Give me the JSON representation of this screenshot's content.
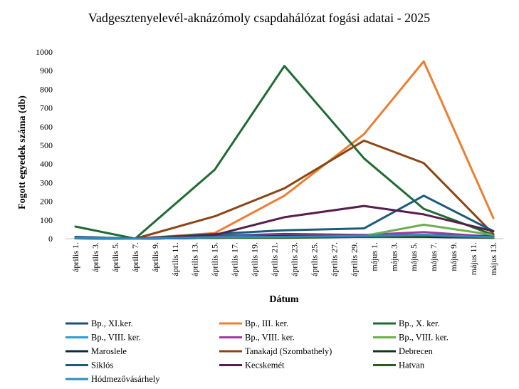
{
  "chart_data": {
    "type": "line",
    "title": "Vadgesztenyelevél-aknázómoly csapdahálózat fogási adatai - 2025",
    "xlabel": "Dátum",
    "ylabel": "Fogott egyedek száma (db)",
    "ylim": [
      0,
      1000
    ],
    "yticks": [
      "0",
      "100",
      "200",
      "300",
      "400",
      "500",
      "600",
      "700",
      "800",
      "900",
      "1000"
    ],
    "grid": false,
    "legend_position": "bottom",
    "categories": [
      "április 1.",
      "április 3.",
      "április 5.",
      "április 7.",
      "április 9.",
      "április 11.",
      "április 13.",
      "április 15.",
      "április 17.",
      "április 19.",
      "április 21.",
      "április 23.",
      "április 25.",
      "április 27.",
      "április 29.",
      "május 1.",
      "május 3.",
      "május 5.",
      "május 7.",
      "május 9.",
      "május 11.",
      "május 13."
    ],
    "series": [
      {
        "name": "Bp., XI.ker.",
        "color": "#1f4e79",
        "points": [
          [
            0,
            10
          ],
          [
            3,
            0
          ],
          [
            7,
            15
          ],
          [
            10.5,
            25
          ],
          [
            14.5,
            20
          ],
          [
            17.5,
            20
          ],
          [
            21,
            15
          ]
        ]
      },
      {
        "name": " Bp., III. ker.",
        "color": "#ed7d31",
        "points": [
          [
            0,
            5
          ],
          [
            3,
            0
          ],
          [
            7,
            30
          ],
          [
            10.5,
            230
          ],
          [
            14.5,
            560
          ],
          [
            17.5,
            950
          ],
          [
            21,
            110
          ]
        ]
      },
      {
        "name": "Bp., X. ker.",
        "color": "#1e6b30",
        "points": [
          [
            0,
            65
          ],
          [
            3,
            0
          ],
          [
            7,
            370
          ],
          [
            10.5,
            925
          ],
          [
            14.5,
            430
          ],
          [
            17.5,
            160
          ],
          [
            21,
            20
          ]
        ]
      },
      {
        "name": "Bp., VIII. ker.",
        "color": "#2e9bd6",
        "points": [
          [
            0,
            5
          ],
          [
            3,
            0
          ],
          [
            7,
            5
          ],
          [
            10.5,
            10
          ],
          [
            14.5,
            10
          ],
          [
            17.5,
            15
          ],
          [
            21,
            10
          ]
        ]
      },
      {
        "name": "Bp., VIII. ker.",
        "color": "#a5399a",
        "points": [
          [
            0,
            3
          ],
          [
            3,
            0
          ],
          [
            7,
            10
          ],
          [
            10.5,
            20
          ],
          [
            14.5,
            20
          ],
          [
            17.5,
            35
          ],
          [
            21,
            10
          ]
        ]
      },
      {
        "name": "Bp., VIII. ker.",
        "color": "#6ab04c",
        "points": [
          [
            0,
            2
          ],
          [
            3,
            0
          ],
          [
            7,
            5
          ],
          [
            10.5,
            10
          ],
          [
            14.5,
            15
          ],
          [
            17.5,
            75
          ],
          [
            21,
            20
          ]
        ]
      },
      {
        "name": "Maroslele",
        "color": "#0d2a3e",
        "points": [
          [
            0,
            2
          ],
          [
            3,
            0
          ],
          [
            7,
            5
          ],
          [
            10.5,
            10
          ],
          [
            14.5,
            10
          ],
          [
            17.5,
            10
          ],
          [
            21,
            5
          ]
        ]
      },
      {
        "name": "Tanakajd (Szombathely)",
        "color": "#8b4513",
        "points": [
          [
            0,
            3
          ],
          [
            3,
            0
          ],
          [
            7,
            120
          ],
          [
            10.5,
            270
          ],
          [
            14.5,
            525
          ],
          [
            17.5,
            405
          ],
          [
            21,
            25
          ]
        ]
      },
      {
        "name": "Debrecen",
        "color": "#10361c",
        "points": [
          [
            0,
            2
          ],
          [
            3,
            0
          ],
          [
            7,
            5
          ],
          [
            10.5,
            15
          ],
          [
            14.5,
            15
          ],
          [
            17.5,
            20
          ],
          [
            21,
            10
          ]
        ]
      },
      {
        "name": "Siklós",
        "color": "#1a5c7a",
        "points": [
          [
            0,
            5
          ],
          [
            3,
            0
          ],
          [
            7,
            25
          ],
          [
            10.5,
            45
          ],
          [
            14.5,
            55
          ],
          [
            17.5,
            230
          ],
          [
            21,
            40
          ]
        ]
      },
      {
        "name": "Kecskemét",
        "color": "#561e4e",
        "points": [
          [
            0,
            3
          ],
          [
            3,
            0
          ],
          [
            7,
            20
          ],
          [
            10.5,
            115
          ],
          [
            14.5,
            175
          ],
          [
            17.5,
            130
          ],
          [
            21,
            40
          ]
        ]
      },
      {
        "name": "Hatvan",
        "color": "#2e5a1c",
        "points": [
          [
            0,
            2
          ],
          [
            3,
            0
          ],
          [
            7,
            5
          ],
          [
            10.5,
            5
          ],
          [
            14.5,
            10
          ],
          [
            17.5,
            15
          ],
          [
            21,
            5
          ]
        ]
      },
      {
        "name": "Hódmezővásárhely",
        "color": "#2b8cc4",
        "points": [
          [
            0,
            4
          ],
          [
            3,
            0
          ],
          [
            7,
            8
          ],
          [
            10.5,
            10
          ],
          [
            14.5,
            15
          ],
          [
            17.5,
            20
          ],
          [
            21,
            8
          ]
        ]
      }
    ]
  }
}
